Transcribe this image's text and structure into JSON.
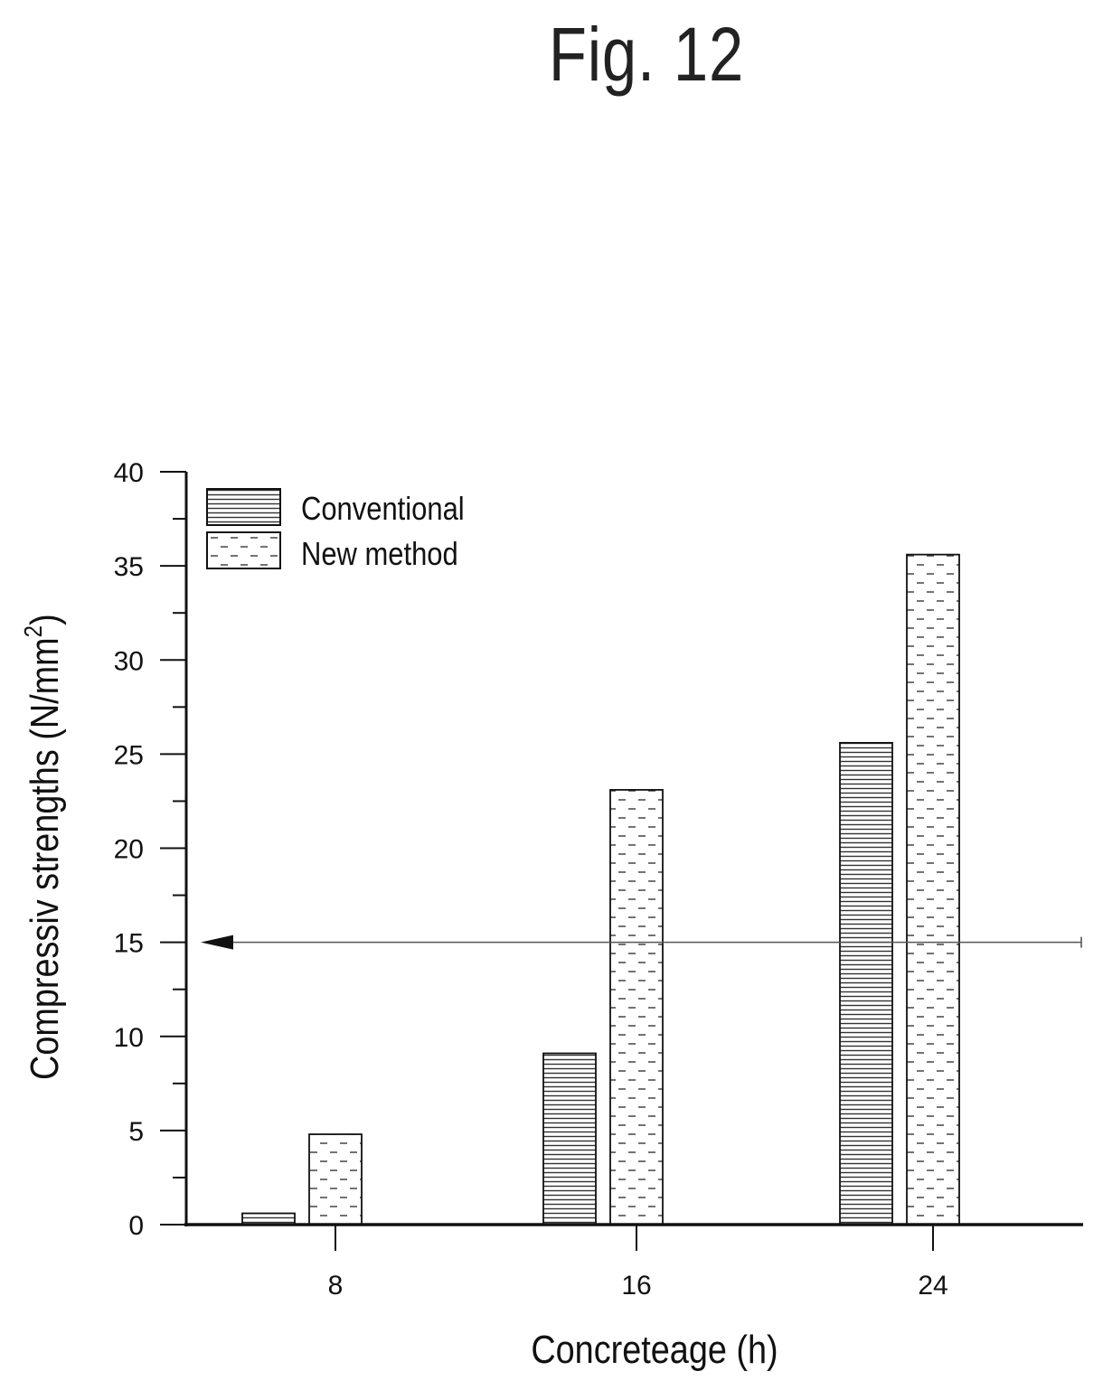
{
  "figure": {
    "title": "Fig. 12"
  },
  "chart_data": {
    "type": "bar",
    "categories": [
      "8",
      "16",
      "24"
    ],
    "series": [
      {
        "name": "Conventional",
        "values": [
          0.6,
          9.1,
          25.6
        ],
        "pattern": "horizontal-lines"
      },
      {
        "name": "New method",
        "values": [
          4.8,
          23.1,
          35.6
        ],
        "pattern": "dashes"
      }
    ],
    "xlabel": "Concreteage (h)",
    "ylabel": "Compressiv strengths (N/mm",
    "ylabel_sup": "2",
    "ylabel_close": ")",
    "ylim": [
      0,
      40
    ],
    "yticks": [
      "0",
      "5",
      "10",
      "15",
      "20",
      "25",
      "30",
      "35",
      "40"
    ],
    "reference_line": {
      "y": 15,
      "style": "arrow-left"
    },
    "legend_position": "top-left",
    "grid": false,
    "colors": {
      "ink": "#111111",
      "fill": "#ffffff"
    }
  }
}
